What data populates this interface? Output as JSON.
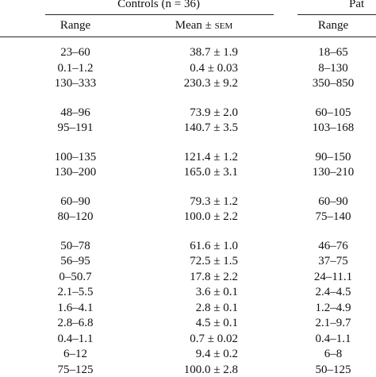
{
  "header": {
    "group_label": "Controls (n = 36)",
    "group_label_2": "Pat"
  },
  "columns": [
    {
      "text": "Range"
    },
    {
      "text": "Mean ±",
      "unit": "sem"
    },
    {
      "text": "Range"
    }
  ],
  "groups": [
    [
      [
        "23–60",
        "38.7 ± 1.9",
        "18–65"
      ],
      [
        "0.1–1.2",
        "0.4 ± 0.03",
        "8–130"
      ],
      [
        "130–333",
        "230.3 ± 9.2",
        "350–850"
      ]
    ],
    [
      [
        "48–96",
        "73.9 ± 2.0",
        "60–105"
      ],
      [
        "95–191",
        "140.7 ± 3.5",
        "103–168"
      ]
    ],
    [
      [
        "100–135",
        "121.4 ± 1.2",
        "90–150"
      ],
      [
        "130–200",
        "165.0 ± 3.1",
        "130–210"
      ]
    ],
    [
      [
        "60–90",
        "79.3 ± 1.2",
        "60–90"
      ],
      [
        "80–120",
        "100.0 ± 2.2",
        "75–140"
      ]
    ],
    [
      [
        "50–78",
        "61.6 ± 1.0",
        "46–76"
      ],
      [
        "56–95",
        "72.5 ± 1.5",
        "37–75"
      ],
      [
        "0–50.7",
        "17.8 ± 2.2",
        "24–11.1"
      ],
      [
        "2.1–5.5",
        "3.6 ± 0.1",
        "2.4–4.5"
      ],
      [
        "1.6–4.1",
        "2.8 ± 0.1",
        "1.2–4.9"
      ],
      [
        "2.8–6.8",
        "4.5 ± 0.1",
        "2.1–9.7"
      ],
      [
        "0.4–1.1",
        "0.7 ± 0.02",
        "0.4–1.1"
      ],
      [
        "6–12",
        "9.4 ± 0.2",
        "6–8"
      ],
      [
        "75–125",
        "100.0 ± 2.8",
        "50–125"
      ]
    ]
  ]
}
